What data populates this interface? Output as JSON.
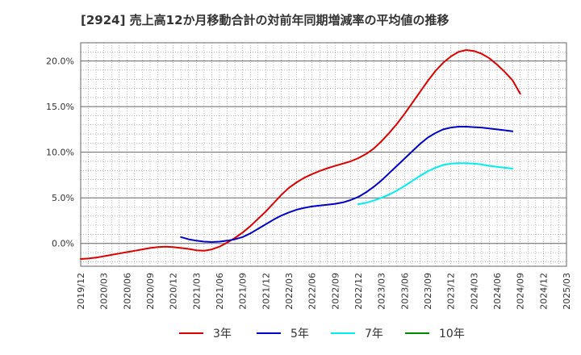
{
  "chart_data": {
    "type": "line",
    "title": "[2924]  売上高12か月移動合計の対前年同期増減率の平均値の推移",
    "xlabel": "",
    "ylabel": "",
    "x_ticks": [
      "2019/12",
      "2020/03",
      "2020/06",
      "2020/09",
      "2020/12",
      "2021/03",
      "2021/06",
      "2021/09",
      "2021/12",
      "2022/03",
      "2022/06",
      "2022/09",
      "2022/12",
      "2023/03",
      "2023/06",
      "2023/09",
      "2023/12",
      "2024/03",
      "2024/06",
      "2024/09",
      "2024/12",
      "2025/03"
    ],
    "y_ticks": [
      "0.0%",
      "5.0%",
      "10.0%",
      "15.0%",
      "20.0%"
    ],
    "y_tick_values": [
      0,
      5,
      10,
      15,
      20
    ],
    "ylim": [
      -2.5,
      22
    ],
    "grid": true,
    "legend_position": "bottom",
    "series": [
      {
        "name": "3年",
        "color": "#dd0000",
        "points": [
          [
            "2019/12",
            -1.7
          ],
          [
            "2020/01",
            -1.65
          ],
          [
            "2020/02",
            -1.55
          ],
          [
            "2020/03",
            -1.4
          ],
          [
            "2020/04",
            -1.25
          ],
          [
            "2020/05",
            -1.1
          ],
          [
            "2020/06",
            -0.95
          ],
          [
            "2020/07",
            -0.8
          ],
          [
            "2020/08",
            -0.65
          ],
          [
            "2020/09",
            -0.5
          ],
          [
            "2020/10",
            -0.4
          ],
          [
            "2020/11",
            -0.35
          ],
          [
            "2020/12",
            -0.4
          ],
          [
            "2021/01",
            -0.5
          ],
          [
            "2021/02",
            -0.6
          ],
          [
            "2021/03",
            -0.75
          ],
          [
            "2021/04",
            -0.8
          ],
          [
            "2021/05",
            -0.65
          ],
          [
            "2021/06",
            -0.35
          ],
          [
            "2021/07",
            0.1
          ],
          [
            "2021/08",
            0.6
          ],
          [
            "2021/09",
            1.2
          ],
          [
            "2021/10",
            1.9
          ],
          [
            "2021/11",
            2.7
          ],
          [
            "2021/12",
            3.5
          ],
          [
            "2022/01",
            4.4
          ],
          [
            "2022/02",
            5.3
          ],
          [
            "2022/03",
            6.1
          ],
          [
            "2022/04",
            6.7
          ],
          [
            "2022/05",
            7.2
          ],
          [
            "2022/06",
            7.6
          ],
          [
            "2022/07",
            7.95
          ],
          [
            "2022/08",
            8.25
          ],
          [
            "2022/09",
            8.5
          ],
          [
            "2022/10",
            8.75
          ],
          [
            "2022/11",
            9.0
          ],
          [
            "2022/12",
            9.35
          ],
          [
            "2023/01",
            9.8
          ],
          [
            "2023/02",
            10.4
          ],
          [
            "2023/03",
            11.2
          ],
          [
            "2023/04",
            12.1
          ],
          [
            "2023/05",
            13.1
          ],
          [
            "2023/06",
            14.2
          ],
          [
            "2023/07",
            15.4
          ],
          [
            "2023/08",
            16.6
          ],
          [
            "2023/09",
            17.8
          ],
          [
            "2023/10",
            18.9
          ],
          [
            "2023/11",
            19.8
          ],
          [
            "2023/12",
            20.5
          ],
          [
            "2024/01",
            21.0
          ],
          [
            "2024/02",
            21.2
          ],
          [
            "2024/03",
            21.1
          ],
          [
            "2024/04",
            20.8
          ],
          [
            "2024/05",
            20.3
          ],
          [
            "2024/06",
            19.6
          ],
          [
            "2024/07",
            18.8
          ],
          [
            "2024/08",
            17.9
          ],
          [
            "2024/09",
            16.4
          ]
        ]
      },
      {
        "name": "5年",
        "color": "#0000cc",
        "points": [
          [
            "2021/01",
            0.7
          ],
          [
            "2021/02",
            0.45
          ],
          [
            "2021/03",
            0.3
          ],
          [
            "2021/04",
            0.2
          ],
          [
            "2021/05",
            0.15
          ],
          [
            "2021/06",
            0.2
          ],
          [
            "2021/07",
            0.3
          ],
          [
            "2021/08",
            0.45
          ],
          [
            "2021/09",
            0.7
          ],
          [
            "2021/10",
            1.1
          ],
          [
            "2021/11",
            1.6
          ],
          [
            "2021/12",
            2.1
          ],
          [
            "2022/01",
            2.6
          ],
          [
            "2022/02",
            3.05
          ],
          [
            "2022/03",
            3.4
          ],
          [
            "2022/04",
            3.7
          ],
          [
            "2022/05",
            3.9
          ],
          [
            "2022/06",
            4.05
          ],
          [
            "2022/07",
            4.15
          ],
          [
            "2022/08",
            4.25
          ],
          [
            "2022/09",
            4.35
          ],
          [
            "2022/10",
            4.5
          ],
          [
            "2022/11",
            4.75
          ],
          [
            "2022/12",
            5.1
          ],
          [
            "2023/01",
            5.6
          ],
          [
            "2023/02",
            6.2
          ],
          [
            "2023/03",
            6.9
          ],
          [
            "2023/04",
            7.7
          ],
          [
            "2023/05",
            8.5
          ],
          [
            "2023/06",
            9.3
          ],
          [
            "2023/07",
            10.1
          ],
          [
            "2023/08",
            10.9
          ],
          [
            "2023/09",
            11.6
          ],
          [
            "2023/10",
            12.1
          ],
          [
            "2023/11",
            12.5
          ],
          [
            "2023/12",
            12.7
          ],
          [
            "2024/01",
            12.8
          ],
          [
            "2024/02",
            12.8
          ],
          [
            "2024/03",
            12.75
          ],
          [
            "2024/04",
            12.7
          ],
          [
            "2024/05",
            12.6
          ],
          [
            "2024/06",
            12.5
          ],
          [
            "2024/07",
            12.4
          ],
          [
            "2024/08",
            12.3
          ]
        ]
      },
      {
        "name": "7年",
        "color": "#00eeee",
        "points": [
          [
            "2022/12",
            4.3
          ],
          [
            "2023/01",
            4.45
          ],
          [
            "2023/02",
            4.7
          ],
          [
            "2023/03",
            5.0
          ],
          [
            "2023/04",
            5.35
          ],
          [
            "2023/05",
            5.8
          ],
          [
            "2023/06",
            6.3
          ],
          [
            "2023/07",
            6.85
          ],
          [
            "2023/08",
            7.4
          ],
          [
            "2023/09",
            7.9
          ],
          [
            "2023/10",
            8.3
          ],
          [
            "2023/11",
            8.6
          ],
          [
            "2023/12",
            8.75
          ],
          [
            "2024/01",
            8.8
          ],
          [
            "2024/02",
            8.8
          ],
          [
            "2024/03",
            8.75
          ],
          [
            "2024/04",
            8.65
          ],
          [
            "2024/05",
            8.5
          ],
          [
            "2024/06",
            8.4
          ],
          [
            "2024/07",
            8.3
          ],
          [
            "2024/08",
            8.2
          ]
        ]
      },
      {
        "name": "10年",
        "color": "#008800",
        "points": []
      }
    ]
  }
}
